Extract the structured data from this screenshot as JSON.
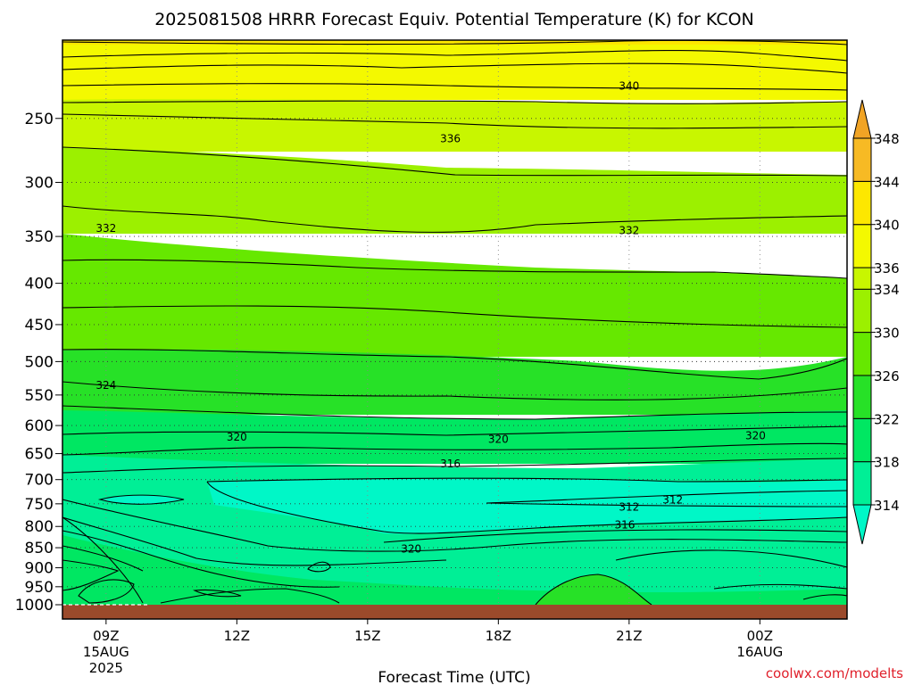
{
  "chart_data": {
    "type": "contour",
    "title": "2025081508 HRRR Forecast Equiv. Potential Temperature (K) for KCON",
    "xlabel": "Forecast Time (UTC)",
    "ylabel": "",
    "credit": "coolwx.com/modelts",
    "y_axis": {
      "scale": "log-pressure",
      "unit": "hPa",
      "range": [
        1000,
        200
      ],
      "ticks": [
        1000,
        950,
        900,
        850,
        800,
        750,
        700,
        650,
        600,
        550,
        500,
        450,
        400,
        350,
        300,
        250
      ]
    },
    "x_axis": {
      "range_hours": [
        8,
        26
      ],
      "ticks": [
        {
          "hour": 9,
          "label": "09Z",
          "date": "15AUG",
          "year": "2025"
        },
        {
          "hour": 12,
          "label": "12Z",
          "date": "",
          "year": ""
        },
        {
          "hour": 15,
          "label": "15Z",
          "date": "",
          "year": ""
        },
        {
          "hour": 18,
          "label": "18Z",
          "date": "",
          "year": ""
        },
        {
          "hour": 21,
          "label": "21Z",
          "date": "",
          "year": ""
        },
        {
          "hour": 24,
          "label": "00Z",
          "date": "16AUG",
          "year": ""
        }
      ]
    },
    "colorbar": {
      "levels": [
        314,
        318,
        322,
        326,
        330,
        334,
        336,
        340,
        344,
        348
      ],
      "colors": [
        "#00f7c7",
        "#00ef96",
        "#00e762",
        "#27e127",
        "#66e800",
        "#9cf000",
        "#c8f600",
        "#f4f900",
        "#fde700",
        "#f7ba24",
        "#f1a425"
      ],
      "extend": "both"
    },
    "contour_labels": [
      {
        "value": 340,
        "hour": 21.0,
        "hPa": 228
      },
      {
        "value": 336,
        "hour": 16.9,
        "hPa": 265
      },
      {
        "value": 332,
        "hour": 9.0,
        "hPa": 342
      },
      {
        "value": 332,
        "hour": 21.0,
        "hPa": 344
      },
      {
        "value": 324,
        "hour": 9.0,
        "hPa": 535
      },
      {
        "value": 320,
        "hour": 12.0,
        "hPa": 620
      },
      {
        "value": 320,
        "hour": 18.0,
        "hPa": 624
      },
      {
        "value": 320,
        "hour": 23.9,
        "hPa": 618
      },
      {
        "value": 316,
        "hour": 16.9,
        "hPa": 669
      },
      {
        "value": 312,
        "hour": 22.0,
        "hPa": 742
      },
      {
        "value": 312,
        "hour": 21.0,
        "hPa": 757
      },
      {
        "value": 316,
        "hour": 20.9,
        "hPa": 796
      },
      {
        "value": 320,
        "hour": 16.0,
        "hPa": 853
      }
    ],
    "legend_position": "right",
    "grid": true
  }
}
